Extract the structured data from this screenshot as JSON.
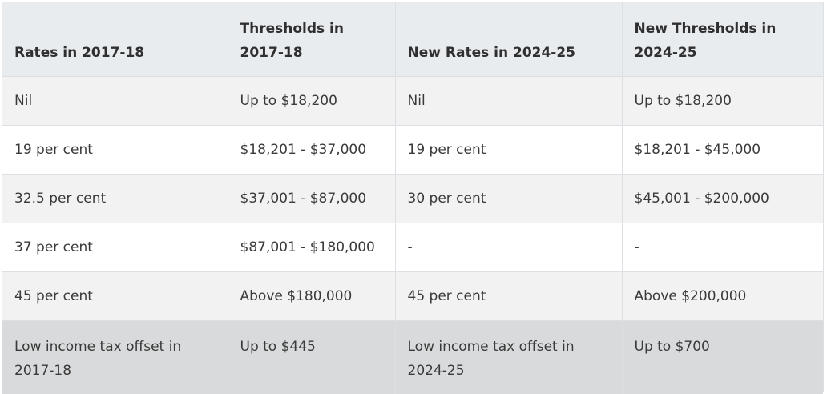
{
  "table": {
    "headers": [
      "Rates in 2017-18",
      "Thresholds in 2017-18",
      "New Rates in 2024-25",
      "New Thresholds in 2024-25"
    ],
    "rows": [
      [
        "Nil",
        "Up to $18,200",
        "Nil",
        "Up to $18,200"
      ],
      [
        "19 per cent",
        "$18,201 - $37,000",
        "19 per cent",
        "$18,201 - $45,000"
      ],
      [
        "32.5 per cent",
        "$37,001 - $87,000",
        "30 per cent",
        "$45,001 - $200,000"
      ],
      [
        "37 per cent",
        "$87,001 - $180,000",
        "-",
        "-"
      ],
      [
        "45 per cent",
        "Above $180,000",
        "45 per cent",
        "Above $200,000"
      ],
      [
        "Low income tax offset in 2017-18",
        "Up to $445",
        "Low income tax offset in 2024-25",
        "Up to $700"
      ]
    ]
  },
  "colors": {
    "header_bg": "#e9ecef",
    "row_alt_bg": "#f2f2f2",
    "row_bg": "#ffffff",
    "offset_row_bg": "#d9dadb",
    "border": "#dcdfe3",
    "text": "#3a3a3a"
  }
}
